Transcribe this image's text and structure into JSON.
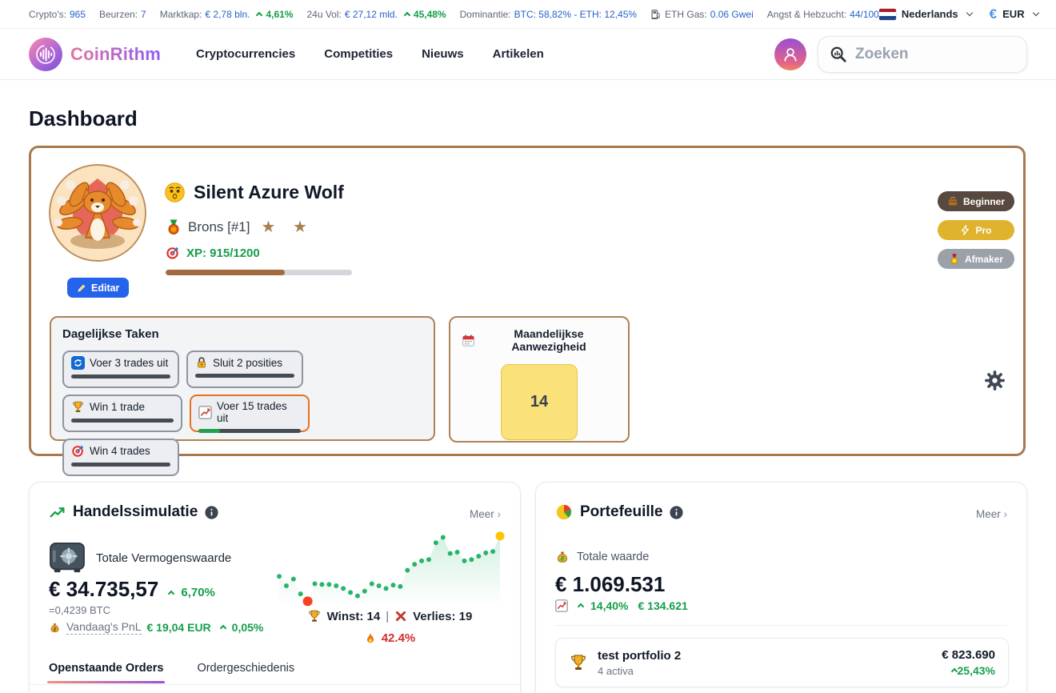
{
  "topbar": {
    "stats": [
      {
        "label": "Crypto's:",
        "value": "965"
      },
      {
        "label": "Beurzen:",
        "value": "7"
      },
      {
        "label": "Marktkap:",
        "value": "€ 2,78 bln.",
        "change": "4,61%",
        "direction": "up"
      },
      {
        "label": "24u Vol:",
        "value": "€ 27,12 mld.",
        "change": "45,48%",
        "direction": "up"
      },
      {
        "label": "Dominantie:",
        "value": "BTC: 58,82% - ETH: 12,45%"
      },
      {
        "label": "ETH Gas:",
        "value": "0.06 Gwei"
      },
      {
        "label": "Angst & Hebzucht:",
        "value": "44/100"
      }
    ],
    "language": "Nederlands",
    "currency": "EUR",
    "currency_symbol": "€"
  },
  "nav": {
    "brand": "CoinRithm",
    "items": [
      {
        "label": "Cryptocurrencies"
      },
      {
        "label": "Competities"
      },
      {
        "label": "Nieuws"
      },
      {
        "label": "Artikelen"
      }
    ],
    "search": {
      "placeholder": "Zoeken"
    }
  },
  "page": {
    "title": "Dashboard"
  },
  "profile": {
    "name": "Silent Azure Wolf",
    "name_emoji": "hushed-face",
    "rank_label": "Brons [#1]",
    "stars": "★ ★",
    "xp_label": "XP: 915/1200",
    "xp_percent": 64,
    "edit_button": "Editar",
    "badges": [
      {
        "label": "Beginner",
        "icon": "briefcase-icon",
        "bg": "#57493f"
      },
      {
        "label": "Pro",
        "icon": "lightning-icon",
        "bg": "#e0b32e"
      },
      {
        "label": "Afmaker",
        "icon": "gold-medal-icon",
        "bg": "#9ba1a9"
      }
    ]
  },
  "daily_tasks": {
    "title": "Dagelijkse Taken",
    "tasks": [
      {
        "icon": "refresh-icon",
        "label": "Voer 3 trades uit",
        "progress": 0,
        "highlighted": false
      },
      {
        "icon": "lock-icon",
        "label": "Sluit 2 posities",
        "progress": 0,
        "highlighted": false
      },
      {
        "icon": "trophy-icon",
        "label": "Win 1 trade",
        "progress": 0,
        "highlighted": false
      },
      {
        "icon": "chart-up-icon",
        "label": "Voer 15 trades uit",
        "progress": 21,
        "highlighted": true
      },
      {
        "icon": "target-icon",
        "label": "Win 4 trades",
        "progress": 0,
        "highlighted": false
      }
    ]
  },
  "attendance": {
    "title": "Maandelijkse Aanwezigheid",
    "icon": "calendar-icon",
    "day_value": "14",
    "box_color": "#fae17a"
  },
  "trading_sim": {
    "title": "Handelssimulatie",
    "more_label": "Meer",
    "more_arrow": "›",
    "total_label": "Totale Vermogenswaarde",
    "total_value": "€ 34.735,57",
    "total_change": "6,70%",
    "btc_equivalent": "=0,4239 BTC",
    "pnl_label": "Vandaag's PnL",
    "pnl_value": "€ 19,04 EUR",
    "pnl_change": "0,05%",
    "wins_label": "Winst: 14",
    "separator": "|",
    "losses_label": "Verlies: 19",
    "win_rate": "42.4%",
    "tabs": [
      {
        "label": "Openstaande Orders",
        "active": true
      },
      {
        "label": "Ordergeschiedenis",
        "active": false
      }
    ]
  },
  "portfolio": {
    "title": "Portefeuille",
    "more_label": "Meer",
    "more_arrow": "›",
    "total_label": "Totale waarde",
    "total_value": "€ 1.069.531",
    "change_percent": "14,40%",
    "change_value": "€ 134.621",
    "items": [
      {
        "icon": "trophy-icon",
        "name": "test portfolio 2",
        "assets": "4 activa",
        "value": "€ 823.690",
        "change": "25,43%"
      }
    ]
  },
  "chart_data": {
    "type": "line",
    "title": "Totale Vermogenswaarde sparkline",
    "xlabel": "",
    "ylabel": "",
    "ylim": [
      0,
      100
    ],
    "grid": false,
    "values": [
      39,
      25,
      35,
      13,
      2,
      28,
      27,
      27,
      25,
      21,
      15,
      10,
      17,
      28,
      25,
      21,
      26,
      24,
      48,
      57,
      62,
      64,
      89,
      97,
      73,
      75,
      62,
      64,
      69,
      74,
      76,
      99
    ],
    "low_point_index": 4,
    "style": {
      "line_color": "#27b56a",
      "area_top": "rgba(39,181,106,0.20)",
      "area_bottom": "rgba(39,181,106,0)",
      "low_point_color": "#f5431d",
      "last_point_color": "#ffc400"
    },
    "annotations": {
      "wins": 14,
      "losses": 19,
      "win_rate": "42.4%"
    }
  },
  "colors": {
    "banner_border": "#a8794f",
    "xp_fill": "#a16b3f",
    "positive_green": "#149e4c",
    "loss_red": "#d22d2d",
    "task_highlight": "#e8701f",
    "link_blue": "#2563c9",
    "accent_gradient_from": "#e8729f",
    "accent_gradient_to": "#8b5cf6"
  }
}
